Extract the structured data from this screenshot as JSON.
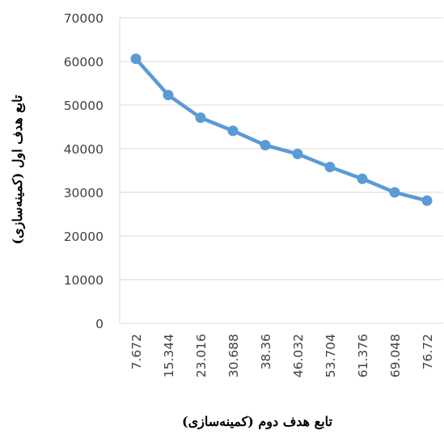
{
  "chart_data": {
    "type": "line",
    "x": [
      "7.672",
      "15.344",
      "23.016",
      "30.688",
      "38.36",
      "46.032",
      "53.704",
      "61.376",
      "69.048",
      "76.72"
    ],
    "series": [
      {
        "values": [
          60600,
          52300,
          47100,
          44100,
          40800,
          38800,
          35800,
          33100,
          30000,
          28100
        ]
      }
    ],
    "xlabel": "تابع هدف دوم (کمینه‌سازی)",
    "ylabel": "تابع هدف اول (کمینه‌سازی)",
    "ylim": [
      0,
      70000
    ],
    "yticks": [
      "0",
      "10000",
      "20000",
      "30000",
      "40000",
      "50000",
      "60000",
      "70000"
    ],
    "grid": true,
    "legend": "none",
    "colors": {
      "line": "#5B9BD5",
      "grid": "#D9D9D9",
      "tick_text": "#404040"
    }
  }
}
